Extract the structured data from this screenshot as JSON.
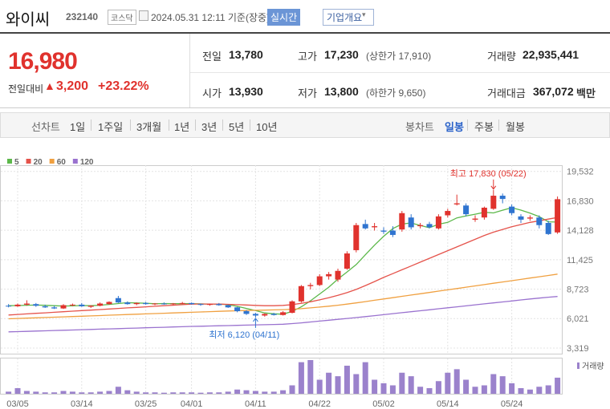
{
  "header": {
    "name": "와이씨",
    "code": "232140",
    "market": "코스닥",
    "timestamp": "2024.05.31 12:11 기준(장중)",
    "realtime": "실시간",
    "company_info": "기업개요"
  },
  "summary": {
    "price": "16,980",
    "change_label": "전일대비",
    "change": "3,200",
    "change_pct": "+23.22%",
    "stats": [
      {
        "label": "전일",
        "value": "13,780"
      },
      {
        "label": "고가",
        "value": "17,230",
        "note": "(상한가 17,910)"
      },
      {
        "label": "거래량",
        "value": "22,935,441"
      },
      {
        "label": "시가",
        "value": "13,930"
      },
      {
        "label": "저가",
        "value": "13,800",
        "note": "(하한가 9,650)"
      },
      {
        "label": "거래대금",
        "value": "367,072",
        "unit": "백만"
      }
    ]
  },
  "tabs": {
    "line_label": "선차트",
    "line_periods": [
      "1일",
      "1주일",
      "3개월",
      "1년",
      "3년",
      "5년",
      "10년"
    ],
    "candle_label": "봉차트",
    "candle_periods": [
      "일봉",
      "주봉",
      "월봉"
    ]
  },
  "chart_data": {
    "type": "candlestick",
    "categories": [
      null,
      "03/05",
      null,
      null,
      null,
      null,
      null,
      null,
      "03/14",
      null,
      null,
      null,
      null,
      null,
      null,
      "03/25",
      null,
      null,
      null,
      null,
      "04/01",
      null,
      null,
      null,
      null,
      null,
      null,
      "04/11",
      null,
      null,
      null,
      null,
      null,
      null,
      "04/22",
      null,
      null,
      null,
      null,
      null,
      null,
      "05/02",
      null,
      null,
      null,
      null,
      null,
      null,
      "05/14",
      null,
      null,
      null,
      null,
      null,
      null,
      "05/24",
      null,
      null,
      null,
      null,
      null
    ],
    "open": [
      7200,
      7150,
      7300,
      7350,
      7150,
      7050,
      6950,
      7250,
      7300,
      7100,
      7200,
      7350,
      7900,
      7500,
      7350,
      7450,
      7350,
      7400,
      7350,
      7400,
      7450,
      7350,
      7300,
      7350,
      7250,
      7050,
      6700,
      6450,
      6300,
      6450,
      6350,
      6550,
      7600,
      9000,
      9100,
      9900,
      9600,
      10600,
      12300,
      14700,
      14400,
      14100,
      14100,
      14200,
      15300,
      14500,
      14700,
      14300,
      15500,
      16500,
      16400,
      15100,
      15300,
      16100,
      17300,
      16300,
      15400,
      15200,
      15300,
      14800,
      13930
    ],
    "high": [
      7350,
      7400,
      7700,
      7450,
      7300,
      7200,
      7350,
      7400,
      7450,
      7250,
      7500,
      7600,
      8100,
      7600,
      7500,
      7550,
      7450,
      7500,
      7450,
      7550,
      7500,
      7400,
      7400,
      7450,
      7300,
      7100,
      6800,
      6550,
      6500,
      6550,
      6700,
      7700,
      9100,
      9300,
      10100,
      10300,
      10600,
      12200,
      14800,
      15100,
      14800,
      14400,
      14500,
      15900,
      15600,
      14800,
      14900,
      15600,
      16100,
      17400,
      16600,
      15500,
      16300,
      17830,
      17500,
      16500,
      15600,
      15500,
      15500,
      15000,
      17230
    ],
    "low": [
      7050,
      7100,
      7200,
      7100,
      7000,
      6900,
      6900,
      7150,
      7100,
      7000,
      7150,
      7300,
      7450,
      7300,
      7250,
      7300,
      7250,
      7300,
      7250,
      7350,
      7300,
      7200,
      7200,
      7200,
      7000,
      6600,
      6350,
      6120,
      6200,
      6300,
      6300,
      6500,
      7500,
      8700,
      9000,
      9600,
      9400,
      10500,
      12100,
      14200,
      14100,
      13800,
      13500,
      14000,
      14200,
      14300,
      14300,
      14200,
      15300,
      16400,
      15400,
      14900,
      15100,
      16000,
      16600,
      15500,
      14800,
      15000,
      14300,
      13700,
      13800
    ],
    "close": [
      7150,
      7300,
      7400,
      7200,
      7050,
      6950,
      7250,
      7300,
      7150,
      7200,
      7400,
      7550,
      7500,
      7350,
      7450,
      7350,
      7400,
      7350,
      7400,
      7450,
      7350,
      7300,
      7350,
      7250,
      7050,
      6700,
      6450,
      6300,
      6450,
      6350,
      6600,
      7600,
      9000,
      9100,
      9900,
      10100,
      10400,
      12000,
      14600,
      14300,
      14500,
      14000,
      13700,
      15700,
      14400,
      14600,
      14400,
      15400,
      15900,
      16600,
      15600,
      15200,
      16200,
      17300,
      17000,
      15700,
      15100,
      15300,
      14600,
      13780,
      16980
    ],
    "up_color": "#e0322d",
    "down_color": "#2f74d0",
    "moving_averages": [
      {
        "name": "5",
        "color": "#5cb84a",
        "values": [
          7200,
          7220,
          7250,
          7260,
          7240,
          7200,
          7170,
          7190,
          7220,
          7200,
          7250,
          7320,
          7400,
          7480,
          7450,
          7430,
          7380,
          7400,
          7390,
          7390,
          7390,
          7370,
          7360,
          7350,
          7300,
          7140,
          6950,
          6750,
          6540,
          6460,
          6420,
          6680,
          7100,
          7650,
          8280,
          8900,
          9650,
          10300,
          10980,
          11880,
          12760,
          13580,
          14280,
          14700,
          14800,
          14570,
          14360,
          14680,
          14850,
          15260,
          15440,
          15600,
          15780,
          15720,
          15970,
          16200,
          15980,
          15700,
          15380,
          14900,
          14880
        ]
      },
      {
        "name": "20",
        "color": "#e5534b",
        "values": [
          6350,
          6400,
          6450,
          6500,
          6550,
          6600,
          6650,
          6700,
          6750,
          6800,
          6850,
          6900,
          6950,
          7000,
          7050,
          7100,
          7150,
          7200,
          7250,
          7300,
          7350,
          7360,
          7360,
          7350,
          7330,
          7300,
          7270,
          7230,
          7200,
          7200,
          7230,
          7300,
          7420,
          7560,
          7740,
          7930,
          8150,
          8400,
          8700,
          9050,
          9420,
          9800,
          10150,
          10500,
          10850,
          11200,
          11550,
          11900,
          12250,
          12600,
          12950,
          13300,
          13650,
          13950,
          14200,
          14450,
          14650,
          14850,
          15000,
          15150,
          15300
        ]
      },
      {
        "name": "60",
        "color": "#f0a040",
        "values": [
          6000,
          6030,
          6060,
          6090,
          6120,
          6150,
          6180,
          6210,
          6240,
          6270,
          6300,
          6330,
          6360,
          6390,
          6420,
          6450,
          6480,
          6510,
          6540,
          6570,
          6600,
          6630,
          6660,
          6690,
          6720,
          6740,
          6760,
          6780,
          6800,
          6820,
          6840,
          6880,
          6930,
          7000,
          7080,
          7160,
          7250,
          7350,
          7460,
          7580,
          7700,
          7820,
          7940,
          8060,
          8180,
          8300,
          8420,
          8540,
          8660,
          8780,
          8900,
          9020,
          9140,
          9260,
          9380,
          9500,
          9620,
          9740,
          9860,
          9980,
          10100
        ]
      },
      {
        "name": "120",
        "color": "#9a72cf",
        "values": [
          4800,
          4825,
          4850,
          4875,
          4900,
          4925,
          4950,
          4975,
          5000,
          5025,
          5050,
          5075,
          5100,
          5125,
          5150,
          5175,
          5200,
          5225,
          5250,
          5275,
          5300,
          5320,
          5340,
          5360,
          5380,
          5400,
          5420,
          5440,
          5460,
          5480,
          5500,
          5560,
          5630,
          5710,
          5790,
          5870,
          5950,
          6030,
          6110,
          6200,
          6290,
          6380,
          6470,
          6560,
          6650,
          6740,
          6830,
          6920,
          7010,
          7100,
          7190,
          7280,
          7370,
          7460,
          7550,
          7640,
          7730,
          7820,
          7900,
          7980,
          8050
        ]
      }
    ],
    "volume": {
      "name": "거래량",
      "color": "#9b82cc",
      "values": [
        3000000,
        8000000,
        4000000,
        3000000,
        2000000,
        2000000,
        4000000,
        3000000,
        2000000,
        2000000,
        3000000,
        4000000,
        10000000,
        5000000,
        3000000,
        2000000,
        2000000,
        1500000,
        2000000,
        2000000,
        2000000,
        1500000,
        2000000,
        2000000,
        3000000,
        6000000,
        5000000,
        4000000,
        3000000,
        3000000,
        5000000,
        12000000,
        45000000,
        48000000,
        20000000,
        30000000,
        25000000,
        40000000,
        28000000,
        45000000,
        20000000,
        15000000,
        12000000,
        30000000,
        25000000,
        10000000,
        8000000,
        18000000,
        30000000,
        35000000,
        20000000,
        10000000,
        12000000,
        28000000,
        25000000,
        15000000,
        8000000,
        6000000,
        10000000,
        12000000,
        22935441
      ]
    },
    "ylim": [
      2800,
      20100
    ],
    "yticks": [
      {
        "value": 3319,
        "label": "3,319"
      },
      {
        "value": 6021,
        "label": "6,021"
      },
      {
        "value": 8723,
        "label": "8,723"
      },
      {
        "value": 11425,
        "label": "11,425"
      },
      {
        "value": 14128,
        "label": "14,128"
      },
      {
        "value": 16830,
        "label": "16,830"
      },
      {
        "value": 19532,
        "label": "19,532"
      }
    ],
    "grid": true,
    "annotations": [
      {
        "text": "최고 17,830 (05/22)",
        "value": 17830,
        "color": "#e0322d"
      },
      {
        "text": "최저 6,120 (04/11)",
        "value": 6120,
        "color": "#2f74d0"
      }
    ]
  }
}
